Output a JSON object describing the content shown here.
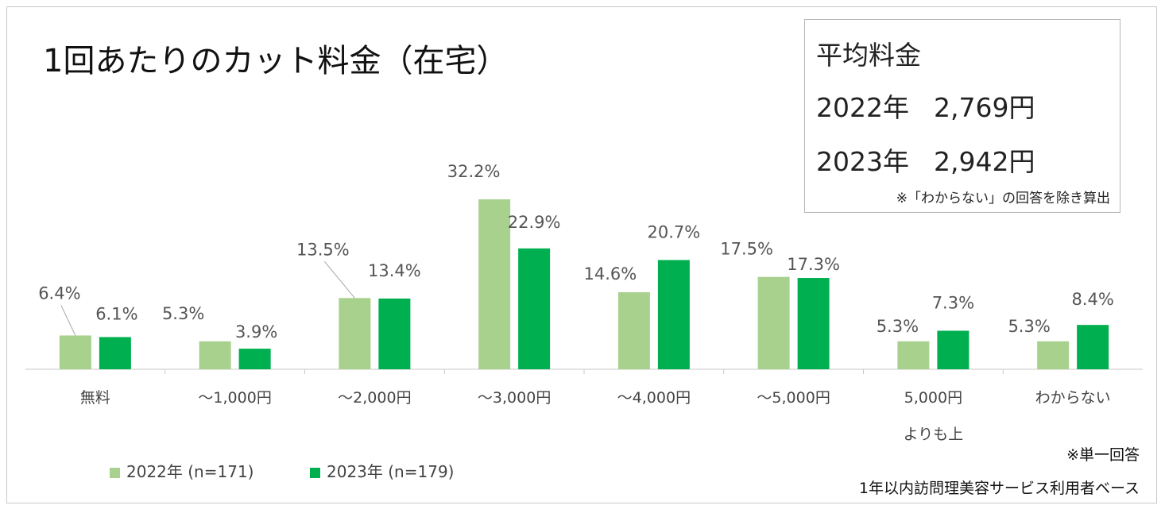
{
  "title": "1回あたりのカット料金（在宅）",
  "average_box": {
    "heading": "平均料金",
    "rows": [
      {
        "year": "2022年",
        "value": "2,769円"
      },
      {
        "year": "2023年",
        "value": "2,942円"
      }
    ],
    "note": "※「わからない」の回答を除き算出"
  },
  "chart_data": {
    "type": "bar",
    "title": "1回あたりのカット料金（在宅）",
    "categories": [
      "無料",
      "～1,000円",
      "～2,000円",
      "～3,000円",
      "～4,000円",
      "～5,000円",
      "5,000円\nよりも上",
      "わからない"
    ],
    "series": [
      {
        "name": "2022年 (n=171)",
        "color": "#a9d18e",
        "values": [
          6.4,
          5.3,
          13.5,
          32.2,
          14.6,
          17.5,
          5.3,
          5.3
        ],
        "labels": [
          "6.4%",
          "5.3%",
          "13.5%",
          "32.2%",
          "14.6%",
          "17.5%",
          "5.3%",
          "5.3%"
        ]
      },
      {
        "name": "2023年 (n=179)",
        "color": "#00b050",
        "values": [
          6.1,
          3.9,
          13.4,
          22.9,
          20.7,
          17.3,
          7.3,
          8.4
        ],
        "labels": [
          "6.1%",
          "3.9%",
          "13.4%",
          "22.9%",
          "20.7%",
          "17.3%",
          "7.3%",
          "8.4%"
        ]
      }
    ],
    "unit": "%",
    "ylim": [
      0,
      32.2
    ],
    "xlabel": "",
    "ylabel": "",
    "grid": false,
    "legend": "bottom-left"
  },
  "notes": {
    "single_answer": "※単一回答",
    "base": "1年以内訪問理美容サービス利用者ベース"
  }
}
